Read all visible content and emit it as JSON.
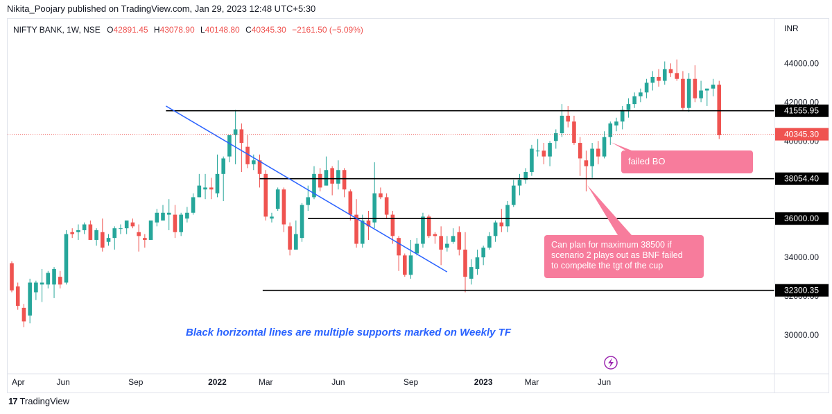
{
  "header": {
    "publisher": "Nikita_Poojary published on TradingView.com, Jan 29, 2023 12:48 UTC+5:30"
  },
  "footer": {
    "brand": "TradingView",
    "logo": "tv-logo-icon"
  },
  "legend": {
    "symbol": "NIFTY BANK, 1W, NSE",
    "o_label": "O",
    "o_value": "42891.45",
    "h_label": "H",
    "h_value": "43078.90",
    "l_label": "L",
    "l_value": "40148.80",
    "c_label": "C",
    "c_value": "40345.30",
    "change": "−2161.50 (−5.09%)"
  },
  "colors": {
    "up": "#26a69a",
    "down": "#ef5350",
    "trendline": "#2962ff",
    "annotation_bg": "#f77c9c",
    "support_line": "#000000",
    "note_text": "#2962ff",
    "lightning": "#9c27b0"
  },
  "annotations": {
    "failed_bo": "failed BO",
    "plan_line1": "Can plan for maximum 38500 if",
    "plan_line2": "scenario 2 plays out as BNF failed",
    "plan_line3": "to compelte the tgt of the cup",
    "note": "Black horizontal lines are multiple supports marked on Weekly TF"
  },
  "chart_data": {
    "type": "candlestick",
    "currency": "INR",
    "yticks": [
      30000,
      32000,
      34000,
      36000,
      38000,
      40000,
      42000,
      44000
    ],
    "ylim": [
      28000,
      46300
    ],
    "xtick_labels": [
      "Apr",
      "Jun",
      "Sep",
      "2022",
      "Mar",
      "Jun",
      "Sep",
      "2023",
      "Mar",
      "Jun"
    ],
    "xtick_weeks": [
      0,
      8.5,
      20.5,
      34,
      42,
      54,
      66,
      78,
      86,
      98
    ],
    "supports": [
      {
        "value": 41555.95,
        "label": "41555.95",
        "start_week": 25.5
      },
      {
        "value": 38054.4,
        "label": "38054.40",
        "start_week": 41
      },
      {
        "value": 36000.0,
        "label": "36000.00",
        "start_week": 49
      },
      {
        "value": 32300.35,
        "label": "32300.35",
        "start_week": 41.5
      }
    ],
    "last_price": {
      "value": 40345.3,
      "label": "40345.30"
    },
    "trendline": {
      "from": {
        "week": 25.5,
        "value": 41800
      },
      "to": {
        "week": 72,
        "value": 33250
      }
    },
    "candles": [
      [
        33700,
        33800,
        32200,
        32300
      ],
      [
        32500,
        32700,
        31300,
        31500
      ],
      [
        31400,
        31600,
        30400,
        30700
      ],
      [
        31000,
        32900,
        30600,
        32700
      ],
      [
        32200,
        32800,
        31800,
        32700
      ],
      [
        32600,
        33400,
        31700,
        32700
      ],
      [
        32600,
        33300,
        32400,
        33200
      ],
      [
        32600,
        33500,
        31900,
        33400
      ],
      [
        33000,
        33300,
        32400,
        32600
      ],
      [
        32700,
        35400,
        32600,
        35200
      ],
      [
        35300,
        35500,
        35000,
        35200
      ],
      [
        35300,
        35700,
        34900,
        35400
      ],
      [
        35400,
        35800,
        35200,
        35700
      ],
      [
        35700,
        35900,
        34900,
        34900
      ],
      [
        34900,
        35500,
        34600,
        35400
      ],
      [
        35300,
        36000,
        34300,
        34500
      ],
      [
        34800,
        35200,
        34600,
        35000
      ],
      [
        35000,
        35600,
        34400,
        35500
      ],
      [
        35500,
        35700,
        35200,
        35500
      ],
      [
        35500,
        35900,
        35200,
        35900
      ],
      [
        35800,
        36000,
        35500,
        35600
      ],
      [
        35300,
        35700,
        34300,
        35100
      ],
      [
        35000,
        35200,
        34500,
        34900
      ],
      [
        34900,
        35900,
        34900,
        35900
      ],
      [
        35800,
        36500,
        35600,
        36300
      ],
      [
        35900,
        36700,
        35900,
        36300
      ],
      [
        36200,
        37000,
        35400,
        36300
      ],
      [
        36200,
        36700,
        35000,
        35300
      ],
      [
        35300,
        36300,
        35100,
        36200
      ],
      [
        36000,
        36600,
        35800,
        36300
      ],
      [
        36300,
        37300,
        36200,
        37100
      ],
      [
        37100,
        38300,
        37100,
        37700
      ],
      [
        37500,
        38300,
        37000,
        37600
      ],
      [
        37600,
        38100,
        37000,
        37500
      ],
      [
        37300,
        39300,
        37100,
        38300
      ],
      [
        38300,
        39200,
        36900,
        39100
      ],
      [
        39200,
        40300,
        38900,
        40300
      ],
      [
        40300,
        41600,
        38800,
        40600
      ],
      [
        40600,
        40900,
        38400,
        39900
      ],
      [
        39700,
        40300,
        38600,
        38800
      ],
      [
        38800,
        39300,
        38500,
        39000
      ],
      [
        39000,
        39300,
        37600,
        38300
      ],
      [
        38300,
        38500,
        35900,
        36100
      ],
      [
        36000,
        36300,
        35800,
        36100
      ],
      [
        36500,
        37600,
        36400,
        37500
      ],
      [
        37500,
        37600,
        35300,
        35700
      ],
      [
        35600,
        35800,
        34100,
        34400
      ],
      [
        34400,
        35900,
        34400,
        35200
      ],
      [
        35000,
        36800,
        34800,
        36700
      ],
      [
        36700,
        37700,
        36400,
        37100
      ],
      [
        37100,
        38700,
        37000,
        38300
      ],
      [
        38300,
        38600,
        37400,
        37600
      ],
      [
        37700,
        39200,
        37700,
        38500
      ],
      [
        38600,
        38700,
        37200,
        37800
      ],
      [
        37800,
        39000,
        37500,
        38500
      ],
      [
        38500,
        38600,
        37100,
        37500
      ],
      [
        37400,
        37500,
        35900,
        36200
      ],
      [
        36200,
        37000,
        34500,
        34700
      ],
      [
        34700,
        36200,
        34500,
        35900
      ],
      [
        35900,
        36400,
        34900,
        35600
      ],
      [
        35800,
        38900,
        35500,
        37300
      ],
      [
        37300,
        37600,
        37000,
        37100
      ],
      [
        37100,
        37300,
        36000,
        36200
      ],
      [
        36200,
        36400,
        34700,
        35100
      ],
      [
        35000,
        35100,
        33300,
        34100
      ],
      [
        34100,
        34200,
        33000,
        33100
      ],
      [
        33100,
        34900,
        32900,
        34100
      ],
      [
        34200,
        35000,
        34100,
        34700
      ],
      [
        34700,
        36300,
        34500,
        36100
      ],
      [
        36100,
        36200,
        35000,
        35100
      ],
      [
        35200,
        35300,
        34700,
        35100
      ],
      [
        35100,
        35600,
        33600,
        34400
      ],
      [
        34500,
        35100,
        34300,
        34700
      ],
      [
        34800,
        35500,
        34700,
        35100
      ],
      [
        35300,
        35600,
        34100,
        34400
      ],
      [
        34400,
        35300,
        32200,
        33000
      ],
      [
        32900,
        33900,
        32600,
        33500
      ],
      [
        33400,
        34400,
        33100,
        34000
      ],
      [
        34000,
        34600,
        33600,
        34500
      ],
      [
        34500,
        35300,
        34400,
        35100
      ],
      [
        35100,
        35900,
        34800,
        35800
      ],
      [
        35800,
        36500,
        35300,
        35600
      ],
      [
        35600,
        36900,
        35300,
        36700
      ],
      [
        36700,
        38000,
        36600,
        37700
      ],
      [
        37700,
        38300,
        37200,
        38000
      ],
      [
        38000,
        38600,
        37800,
        38400
      ],
      [
        38400,
        39800,
        38200,
        39600
      ],
      [
        39500,
        40100,
        39200,
        39500
      ],
      [
        39500,
        39900,
        38800,
        39200
      ],
      [
        39200,
        40000,
        38700,
        39900
      ],
      [
        40000,
        40600,
        39600,
        40400
      ],
      [
        40400,
        41900,
        40200,
        41300
      ],
      [
        41300,
        41800,
        40700,
        41000
      ],
      [
        41000,
        41300,
        39800,
        39900
      ],
      [
        39900,
        40200,
        38200,
        39100
      ],
      [
        39000,
        39500,
        37400,
        38700
      ],
      [
        38700,
        39900,
        38100,
        39600
      ],
      [
        39600,
        40000,
        38800,
        39200
      ],
      [
        39200,
        40500,
        39100,
        40200
      ],
      [
        40200,
        41000,
        39800,
        40900
      ],
      [
        40800,
        41200,
        40500,
        41000
      ],
      [
        41000,
        41800,
        40600,
        41600
      ],
      [
        41600,
        42200,
        41200,
        41900
      ],
      [
        41900,
        42500,
        41700,
        42300
      ],
      [
        42300,
        42700,
        42000,
        42500
      ],
      [
        42500,
        43200,
        42200,
        43000
      ],
      [
        43000,
        43600,
        42600,
        43300
      ],
      [
        43300,
        43700,
        42800,
        43100
      ],
      [
        43100,
        44100,
        42900,
        43700
      ],
      [
        43700,
        44000,
        43300,
        43500
      ],
      [
        43500,
        44200,
        43100,
        43200
      ],
      [
        43200,
        43600,
        41600,
        41700
      ],
      [
        41700,
        43500,
        41500,
        43200
      ],
      [
        43200,
        43900,
        42000,
        42200
      ],
      [
        42200,
        43100,
        42000,
        42600
      ],
      [
        42600,
        42700,
        41800,
        42700
      ],
      [
        42700,
        43200,
        42300,
        42900
      ],
      [
        42900,
        43100,
        40100,
        40300
      ]
    ]
  }
}
